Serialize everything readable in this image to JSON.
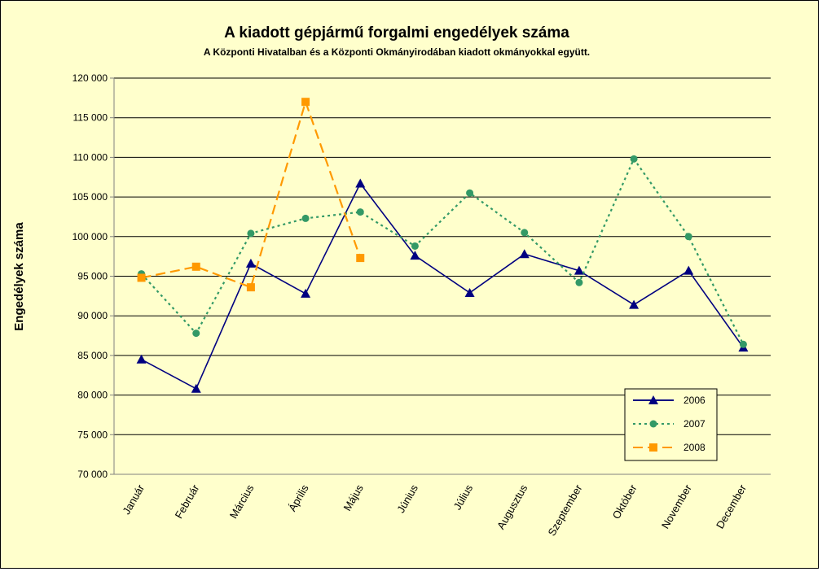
{
  "chart_data": {
    "type": "line",
    "title": "A  kiadott gépjármű forgalmi engedélyek száma",
    "subtitle": "A  Központi Hivatalban és a Központi Okmányirodában kiadott okmányokkal együtt.",
    "y_label": "Engedélyek száma",
    "categories": [
      "Január",
      "Február",
      "Március",
      "Április",
      "Május",
      "Június",
      "Július",
      "Augusztus",
      "Szeptember",
      "Október",
      "November",
      "December"
    ],
    "series": [
      {
        "name": "2006",
        "color": "#000080",
        "line_style": "solid",
        "marker": "triangle",
        "values": [
          84500,
          80800,
          96600,
          92800,
          106700,
          97600,
          92900,
          97800,
          95700,
          91400,
          95700,
          86000
        ]
      },
      {
        "name": "2007",
        "color": "#339966",
        "line_style": "dotted",
        "marker": "circle",
        "values": [
          95300,
          87800,
          100400,
          102300,
          103100,
          98800,
          105500,
          100500,
          94200,
          109800,
          100000,
          86400
        ]
      },
      {
        "name": "2008",
        "color": "#FF9900",
        "line_style": "dashed",
        "marker": "square",
        "values": [
          94800,
          96200,
          93600,
          117000,
          97300,
          null,
          null,
          null,
          null,
          null,
          null,
          null
        ]
      }
    ],
    "ylim": [
      70000,
      120000
    ],
    "yticks": [
      {
        "value": 70000,
        "label": "70 000"
      },
      {
        "value": 75000,
        "label": "75 000"
      },
      {
        "value": 80000,
        "label": "80 000"
      },
      {
        "value": 85000,
        "label": "85 000"
      },
      {
        "value": 90000,
        "label": "90 000"
      },
      {
        "value": 95000,
        "label": "95 000"
      },
      {
        "value": 100000,
        "label": "100 000"
      },
      {
        "value": 105000,
        "label": "105 000"
      },
      {
        "value": 110000,
        "label": "110 000"
      },
      {
        "value": 115000,
        "label": "115 000"
      },
      {
        "value": 120000,
        "label": "120 000"
      }
    ],
    "grid": true,
    "legend": "lower right",
    "background": "#FFFFCC"
  }
}
